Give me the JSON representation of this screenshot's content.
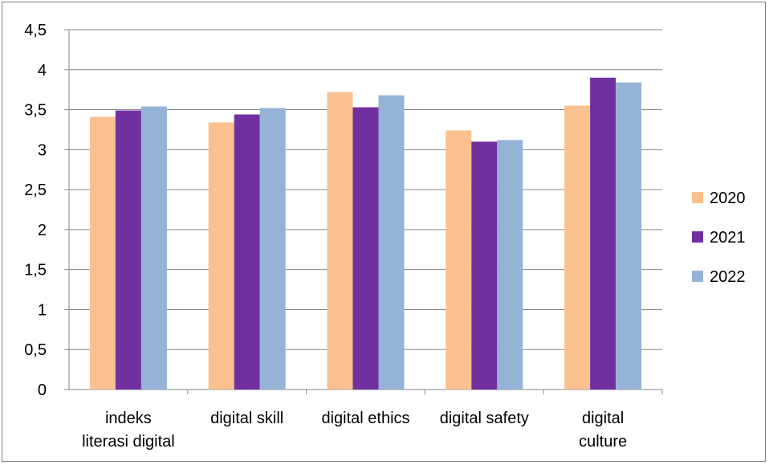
{
  "chart_data": {
    "type": "bar",
    "categories": [
      [
        "indeks",
        "literasi digital"
      ],
      [
        "digital skill"
      ],
      [
        "digital ethics"
      ],
      [
        "digital safety"
      ],
      [
        "digital",
        "culture"
      ]
    ],
    "series": [
      {
        "name": "2020",
        "color": "#FAC090",
        "values": [
          3.41,
          3.34,
          3.72,
          3.24,
          3.55
        ]
      },
      {
        "name": "2021",
        "color": "#7030A0",
        "values": [
          3.49,
          3.44,
          3.53,
          3.1,
          3.9
        ]
      },
      {
        "name": "2022",
        "color": "#95B3D7",
        "values": [
          3.54,
          3.52,
          3.68,
          3.12,
          3.84
        ]
      }
    ],
    "y_ticks": [
      "0",
      "0,5",
      "1",
      "1,5",
      "2",
      "2,5",
      "3",
      "3,5",
      "4",
      "4,5"
    ],
    "ylim": [
      0,
      4.5
    ],
    "grid": true,
    "legend_position": "right",
    "gridline_color": "#868686"
  }
}
